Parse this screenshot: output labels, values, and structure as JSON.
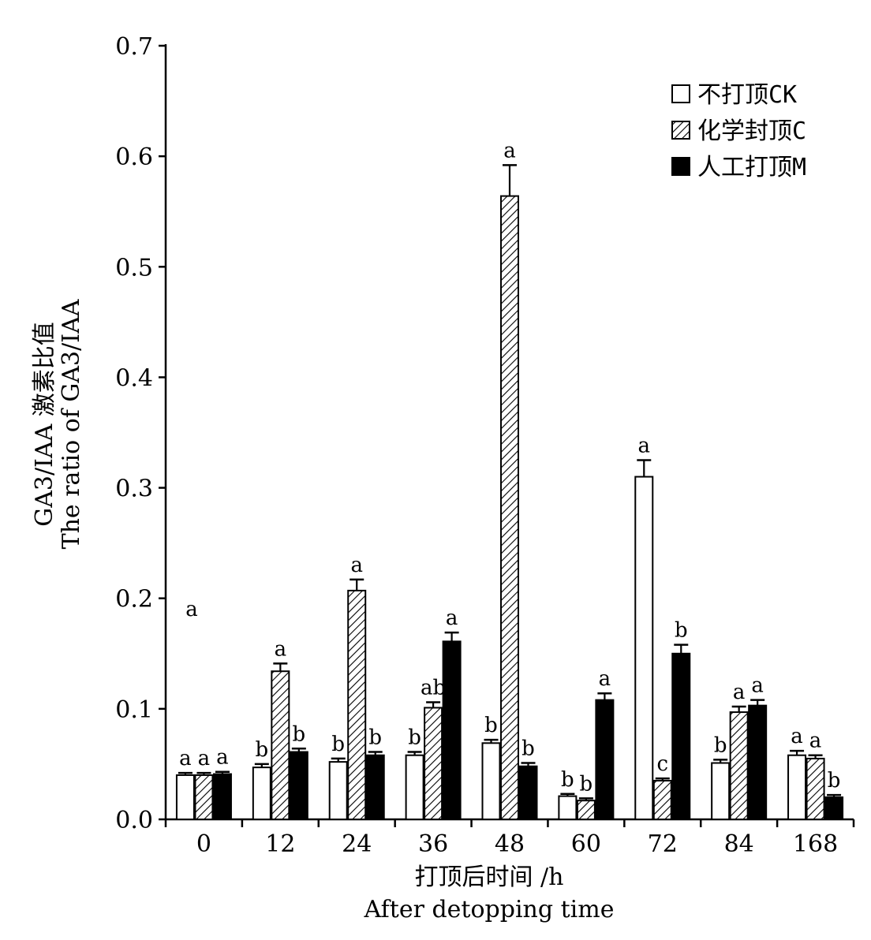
{
  "chart_data": {
    "type": "bar",
    "xlabel": "打顶后时间 /h",
    "xlabel_en": "After detopping time",
    "ylabel": "GA3/IAA 激素比值",
    "ylabel_en": "The ratio of GA3/IAA",
    "ylim": [
      0,
      0.7
    ],
    "yticks": [
      "0.0",
      "0.1",
      "0.2",
      "0.3",
      "0.4",
      "0.5",
      "0.6",
      "0.7"
    ],
    "categories": [
      "0",
      "12",
      "24",
      "36",
      "48",
      "60",
      "72",
      "84",
      "168"
    ],
    "legend_position": "top-right",
    "series": [
      {
        "name": "不打顶CK",
        "pattern": "open",
        "values": [
          0.04,
          0.047,
          0.052,
          0.058,
          0.069,
          0.021,
          0.31,
          0.051,
          0.058
        ],
        "errors": [
          0.002,
          0.003,
          0.003,
          0.003,
          0.003,
          0.002,
          0.015,
          0.003,
          0.004
        ],
        "letters": [
          "a",
          "b",
          "b",
          "b",
          "b",
          "b",
          "a",
          "b",
          "a"
        ]
      },
      {
        "name": "化学封顶C",
        "pattern": "hatched",
        "values": [
          0.04,
          0.134,
          0.207,
          0.101,
          0.564,
          0.017,
          0.035,
          0.097,
          0.055
        ],
        "errors": [
          0.002,
          0.007,
          0.01,
          0.005,
          0.028,
          0.002,
          0.002,
          0.005,
          0.003
        ],
        "letters": [
          "a",
          "a",
          "a",
          "ab",
          "a",
          "b",
          "c",
          "a",
          "a"
        ]
      },
      {
        "name": "人工打顶M",
        "pattern": "solid",
        "values": [
          0.041,
          0.061,
          0.058,
          0.161,
          0.048,
          0.108,
          0.15,
          0.103,
          0.02
        ],
        "errors": [
          0.002,
          0.003,
          0.003,
          0.008,
          0.003,
          0.006,
          0.008,
          0.005,
          0.002
        ],
        "letters": [
          "a",
          "b",
          "b",
          "a",
          "b",
          "a",
          "b",
          "a",
          "b"
        ]
      }
    ],
    "stray_annotation": "a"
  }
}
